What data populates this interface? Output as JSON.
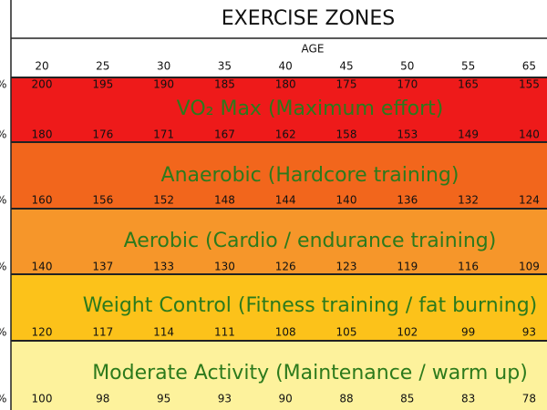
{
  "title": "EXERCISE ZONES",
  "axis_label": "AGE",
  "ages": [
    "20",
    "25",
    "30",
    "35",
    "40",
    "45",
    "50",
    "55",
    "65"
  ],
  "zones": [
    {
      "label": "VO₂ Max (Maximum effort)"
    },
    {
      "label": "Anaerobic (Hardcore training)"
    },
    {
      "label": "Aerobic (Cardio / endurance training)"
    },
    {
      "label": "Weight Control (Fitness training / fat burning)"
    },
    {
      "label": "Moderate Activity (Maintenance / warm up)"
    }
  ],
  "rows": [
    {
      "percent": "%",
      "values": [
        "200",
        "195",
        "190",
        "185",
        "180",
        "175",
        "170",
        "165",
        "155"
      ]
    },
    {
      "percent": "%",
      "values": [
        "180",
        "176",
        "171",
        "167",
        "162",
        "158",
        "153",
        "149",
        "140"
      ]
    },
    {
      "percent": "%",
      "values": [
        "160",
        "156",
        "152",
        "148",
        "144",
        "140",
        "136",
        "132",
        "124"
      ]
    },
    {
      "percent": "%",
      "values": [
        "140",
        "137",
        "133",
        "130",
        "126",
        "123",
        "119",
        "116",
        "109"
      ]
    },
    {
      "percent": "%",
      "values": [
        "120",
        "117",
        "114",
        "111",
        "108",
        "105",
        "102",
        "99",
        "93"
      ]
    },
    {
      "percent": "%",
      "values": [
        "100",
        "98",
        "95",
        "93",
        "90",
        "88",
        "85",
        "83",
        "78"
      ]
    }
  ]
}
